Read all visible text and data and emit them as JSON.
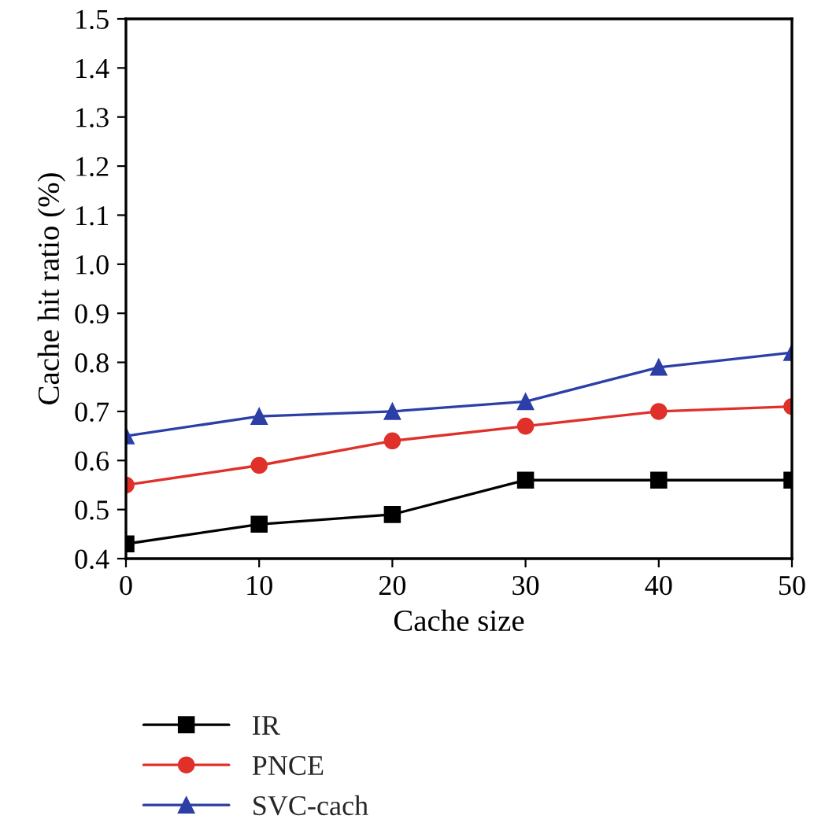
{
  "chart_data": {
    "type": "line",
    "xlabel": "Cache size",
    "ylabel": "Cache hit ratio (%)",
    "x": [
      0,
      10,
      20,
      30,
      40,
      50
    ],
    "series": [
      {
        "name": "IR",
        "color": "#000000",
        "marker": "square",
        "values": [
          0.43,
          0.47,
          0.49,
          0.56,
          0.56,
          0.56
        ]
      },
      {
        "name": "PNCE",
        "color": "#e0302a",
        "marker": "circle",
        "values": [
          0.55,
          0.59,
          0.64,
          0.67,
          0.7,
          0.71
        ]
      },
      {
        "name": "SVC-cach",
        "color": "#2b3fa6",
        "marker": "triangle",
        "values": [
          0.65,
          0.69,
          0.7,
          0.72,
          0.79,
          0.82
        ]
      }
    ],
    "xlim": [
      0,
      50
    ],
    "xticks": [
      0,
      10,
      20,
      30,
      40,
      50
    ],
    "ylim": [
      0.4,
      1.5
    ],
    "yticks": [
      0.4,
      0.5,
      0.6,
      0.7,
      0.8,
      0.9,
      {
        "value": 1.0,
        "label": "1.0"
      },
      1.1,
      1.2,
      1.3,
      1.4,
      1.5
    ],
    "grid": false,
    "legend": "bottom",
    "line_style": "solid"
  }
}
